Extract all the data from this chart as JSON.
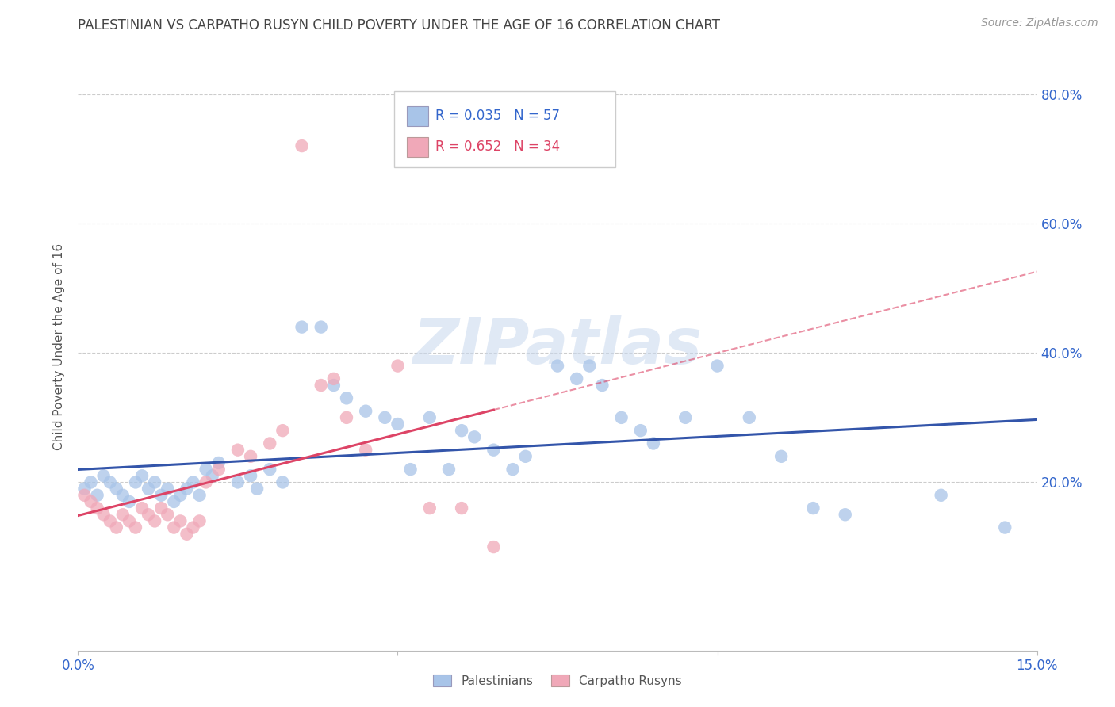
{
  "title": "PALESTINIAN VS CARPATHO RUSYN CHILD POVERTY UNDER THE AGE OF 16 CORRELATION CHART",
  "source": "Source: ZipAtlas.com",
  "ylabel": "Child Poverty Under the Age of 16",
  "ytick_labels": [
    "20.0%",
    "40.0%",
    "60.0%",
    "80.0%"
  ],
  "ytick_values": [
    0.2,
    0.4,
    0.6,
    0.8
  ],
  "xmin": 0.0,
  "xmax": 0.15,
  "ymin": -0.06,
  "ymax": 0.88,
  "legend_blue_label": "R = 0.035   N = 57",
  "legend_pink_label": "R = 0.652   N = 34",
  "legend_palestinians": "Palestinians",
  "legend_carpatho": "Carpatho Rusyns",
  "blue_color": "#a8c4e8",
  "pink_color": "#f0a8b8",
  "blue_line_color": "#3355aa",
  "pink_line_color": "#dd4466",
  "title_color": "#444444",
  "axis_label_color": "#3366cc",
  "grid_color": "#cccccc",
  "palestinians_x": [
    0.001,
    0.002,
    0.003,
    0.004,
    0.005,
    0.006,
    0.007,
    0.008,
    0.009,
    0.01,
    0.011,
    0.012,
    0.013,
    0.014,
    0.015,
    0.016,
    0.017,
    0.018,
    0.019,
    0.02,
    0.021,
    0.022,
    0.025,
    0.027,
    0.028,
    0.03,
    0.032,
    0.035,
    0.038,
    0.04,
    0.042,
    0.045,
    0.048,
    0.05,
    0.052,
    0.055,
    0.058,
    0.06,
    0.062,
    0.065,
    0.068,
    0.07,
    0.075,
    0.078,
    0.08,
    0.082,
    0.085,
    0.088,
    0.09,
    0.095,
    0.1,
    0.105,
    0.11,
    0.115,
    0.12,
    0.135,
    0.145
  ],
  "palestinians_y": [
    0.19,
    0.2,
    0.18,
    0.21,
    0.2,
    0.19,
    0.18,
    0.17,
    0.2,
    0.21,
    0.19,
    0.2,
    0.18,
    0.19,
    0.17,
    0.18,
    0.19,
    0.2,
    0.18,
    0.22,
    0.21,
    0.23,
    0.2,
    0.21,
    0.19,
    0.22,
    0.2,
    0.44,
    0.44,
    0.35,
    0.33,
    0.31,
    0.3,
    0.29,
    0.22,
    0.3,
    0.22,
    0.28,
    0.27,
    0.25,
    0.22,
    0.24,
    0.38,
    0.36,
    0.38,
    0.35,
    0.3,
    0.28,
    0.26,
    0.3,
    0.38,
    0.3,
    0.24,
    0.16,
    0.15,
    0.18,
    0.13
  ],
  "carpatho_x": [
    0.001,
    0.002,
    0.003,
    0.004,
    0.005,
    0.006,
    0.007,
    0.008,
    0.009,
    0.01,
    0.011,
    0.012,
    0.013,
    0.014,
    0.015,
    0.016,
    0.017,
    0.018,
    0.019,
    0.02,
    0.022,
    0.025,
    0.027,
    0.03,
    0.032,
    0.035,
    0.038,
    0.04,
    0.042,
    0.045,
    0.05,
    0.055,
    0.06,
    0.065
  ],
  "carpatho_y": [
    0.18,
    0.17,
    0.16,
    0.15,
    0.14,
    0.13,
    0.15,
    0.14,
    0.13,
    0.16,
    0.15,
    0.14,
    0.16,
    0.15,
    0.13,
    0.14,
    0.12,
    0.13,
    0.14,
    0.2,
    0.22,
    0.25,
    0.24,
    0.26,
    0.28,
    0.72,
    0.35,
    0.36,
    0.3,
    0.25,
    0.38,
    0.16,
    0.16,
    0.1
  ]
}
